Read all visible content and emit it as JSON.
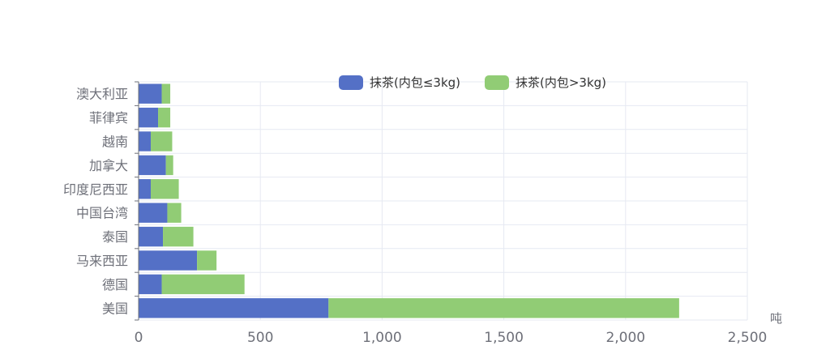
{
  "chart_data": {
    "type": "bar",
    "orientation": "horizontal",
    "stacked": true,
    "categories": [
      "澳大利亚",
      "菲律宾",
      "越南",
      "加拿大",
      "印度尼西亚",
      "中国台湾",
      "泰国",
      "马来西亚",
      "德国",
      "美国"
    ],
    "series": [
      {
        "name": "抹茶(内包≤3kg)",
        "color": "#5470c6",
        "values": [
          95,
          80,
          50,
          112,
          50,
          118,
          100,
          240,
          95,
          780
        ]
      },
      {
        "name": "抹茶(内包>3kg)",
        "color": "#91cc75",
        "values": [
          35,
          50,
          88,
          30,
          115,
          57,
          125,
          80,
          340,
          1440
        ]
      }
    ],
    "x_unit": "吨",
    "xlim": [
      0,
      2500
    ],
    "x_ticks": [
      0,
      500,
      1000,
      1500,
      2000,
      2500
    ],
    "x_tick_labels": [
      "0",
      "500",
      "1,000",
      "1,500",
      "2,000",
      "2,500"
    ],
    "grid": true,
    "legend_position": "top-center"
  }
}
